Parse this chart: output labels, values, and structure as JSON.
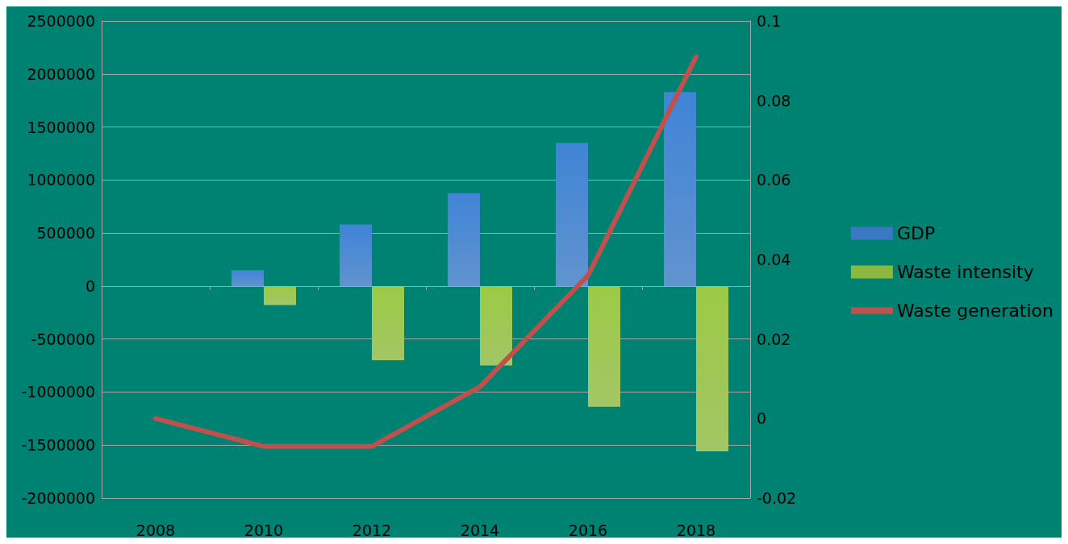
{
  "chart_data": {
    "type": "bar",
    "categories": [
      "2008",
      "2010",
      "2012",
      "2014",
      "2016",
      "2018"
    ],
    "series": [
      {
        "name": "GDP",
        "color": "#3a78c3",
        "values": [
          0,
          150000,
          580000,
          875000,
          1350000,
          1830000
        ]
      },
      {
        "name": "Waste intensity",
        "color": "#8db83f",
        "values": [
          0,
          -180000,
          -700000,
          -750000,
          -1140000,
          -1560000
        ]
      },
      {
        "name": "Waste generation",
        "type": "line",
        "axis": "y2",
        "color": "#c0504d",
        "values": [
          0,
          -0.007,
          -0.007,
          0.008,
          0.036,
          0.091
        ]
      }
    ],
    "ylim": [
      -2000000,
      2500000
    ],
    "yticks": [
      -2000000,
      -1500000,
      -1000000,
      -500000,
      0,
      500000,
      1000000,
      1500000,
      2000000,
      2500000
    ],
    "y2lim": [
      -0.02,
      0.1
    ],
    "y2ticks": [
      -0.02,
      0,
      0.02,
      0.04,
      0.06,
      0.08,
      0.1
    ],
    "grid": "y",
    "legend": "right",
    "marker": "none",
    "line_style": "solid"
  }
}
